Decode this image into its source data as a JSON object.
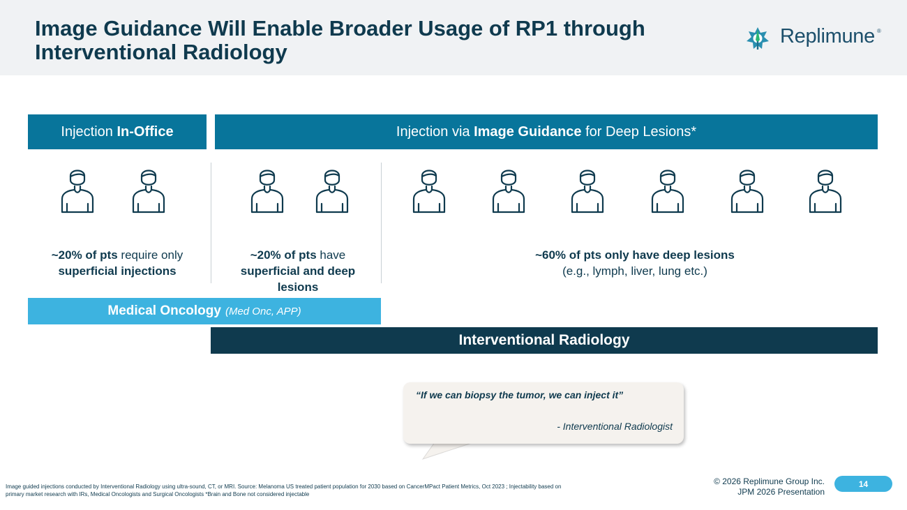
{
  "title": "Image Guidance Will Enable Broader Usage of RP1 through Interventional Radiology",
  "logo": {
    "text": "Replimune",
    "reg": "®",
    "icon": "replimune-logo-icon"
  },
  "sections": {
    "office": {
      "prefix": "Injection ",
      "bold": "In-Office"
    },
    "guided": {
      "prefix": "Injection via ",
      "bold": "Image Guidance",
      "suffix": " for Deep Lesions*"
    }
  },
  "groups": [
    {
      "icon": "person-icon",
      "count": 2,
      "stat_bold": "~20% of pts",
      "stat_rest": " require only ",
      "stat_bold2": "superficial injections",
      "stat_sub": ""
    },
    {
      "icon": "person-icon",
      "count": 2,
      "stat_bold": "~20% of pts",
      "stat_rest": " have ",
      "stat_bold2": "superficial and deep lesions",
      "stat_sub": ""
    },
    {
      "icon": "person-icon",
      "count": 6,
      "stat_bold": "~60% of pts only have deep lesions",
      "stat_rest": "",
      "stat_bold2": "",
      "stat_sub": "(e.g., lymph, liver, lung etc.)"
    }
  ],
  "bars": {
    "medonc": {
      "label": "Medical Oncology",
      "sub": "(Med Onc, APP)"
    },
    "ir": {
      "label": "Interventional Radiology"
    }
  },
  "quote": {
    "text": "“If we can biopsy the tumor, we can inject it”",
    "author": "- Interventional Radiologist"
  },
  "footer": {
    "footnote": "Image guided injections conducted by Interventional Radiology using ultra-sound, CT, or MRI. Source: Melanoma US treated patient population for 2030 based on CancerMPact Patient Metrics, Oct 2023 ; Injectability based on primary market research with IRs, Medical Oncologists and Surgical Oncologists *Brain and Bone not considered injectable",
    "copyright": "© 2026 Replimune Group Inc.",
    "presentation": "JPM 2026 Presentation",
    "page_number": "14"
  },
  "colors": {
    "navy": "#0f3a4e",
    "teal": "#08759b",
    "sky": "#3db3e0",
    "logo_green": "#2bb673"
  }
}
